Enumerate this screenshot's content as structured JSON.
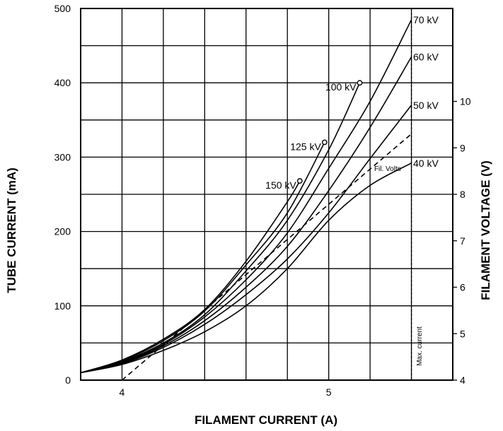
{
  "chart_data": {
    "type": "line",
    "title": "",
    "xlabel": "FILAMENT CURRENT (A)",
    "ylabel": "TUBE CURRENT (mA)",
    "y2label": "FILAMENT VOLTAGE (V)",
    "xlim": [
      3.8,
      5.6
    ],
    "ylim": [
      0,
      500
    ],
    "y2lim": [
      4,
      12
    ],
    "x_ticks": [
      "4",
      "5"
    ],
    "y_ticks": [
      "0",
      "100",
      "200",
      "300",
      "400",
      "500"
    ],
    "y2_ticks": [
      "4",
      "5",
      "6",
      "7",
      "8",
      "9",
      "10"
    ],
    "grid": true,
    "max_current": {
      "x": 5.4,
      "label": "Max. current"
    },
    "series": [
      {
        "name": "150 kV",
        "end_marker": true,
        "x": [
          3.8,
          4.0,
          4.2,
          4.4,
          4.6,
          4.8,
          4.86
        ],
        "y": [
          10,
          27,
          55,
          95,
          160,
          240,
          268
        ]
      },
      {
        "name": "125 kV",
        "end_marker": true,
        "x": [
          3.8,
          4.0,
          4.2,
          4.4,
          4.6,
          4.8,
          4.98
        ],
        "y": [
          10,
          26,
          53,
          93,
          155,
          225,
          320
        ]
      },
      {
        "name": "100 kV",
        "end_marker": true,
        "x": [
          3.8,
          4.0,
          4.2,
          4.4,
          4.6,
          4.8,
          5.0,
          5.15
        ],
        "y": [
          10,
          25,
          50,
          88,
          147,
          215,
          310,
          400
        ]
      },
      {
        "name": "70 kV",
        "end_marker": false,
        "x": [
          3.8,
          4.0,
          4.2,
          4.4,
          4.6,
          4.8,
          5.0,
          5.2,
          5.4
        ],
        "y": [
          10,
          24,
          48,
          85,
          135,
          198,
          285,
          375,
          485
        ]
      },
      {
        "name": "60 kV",
        "end_marker": false,
        "x": [
          3.8,
          4.0,
          4.2,
          4.4,
          4.6,
          4.8,
          5.0,
          5.2,
          5.4
        ],
        "y": [
          10,
          23,
          46,
          80,
          125,
          180,
          255,
          340,
          435
        ]
      },
      {
        "name": "50 kV",
        "end_marker": false,
        "x": [
          3.8,
          4.0,
          4.2,
          4.4,
          4.6,
          4.8,
          5.0,
          5.2,
          5.4
        ],
        "y": [
          10,
          22,
          44,
          75,
          115,
          163,
          225,
          298,
          370
        ]
      },
      {
        "name": "40 kV",
        "end_marker": false,
        "x": [
          3.8,
          4.0,
          4.2,
          4.4,
          4.6,
          4.8,
          5.0,
          5.2,
          5.4
        ],
        "y": [
          10,
          21,
          40,
          65,
          100,
          150,
          215,
          262,
          292
        ]
      }
    ],
    "filament_voltage": {
      "name": "Fil. Volts",
      "axis": "right",
      "x": [
        4.0,
        5.4
      ],
      "y": [
        4.0,
        9.3
      ]
    }
  }
}
